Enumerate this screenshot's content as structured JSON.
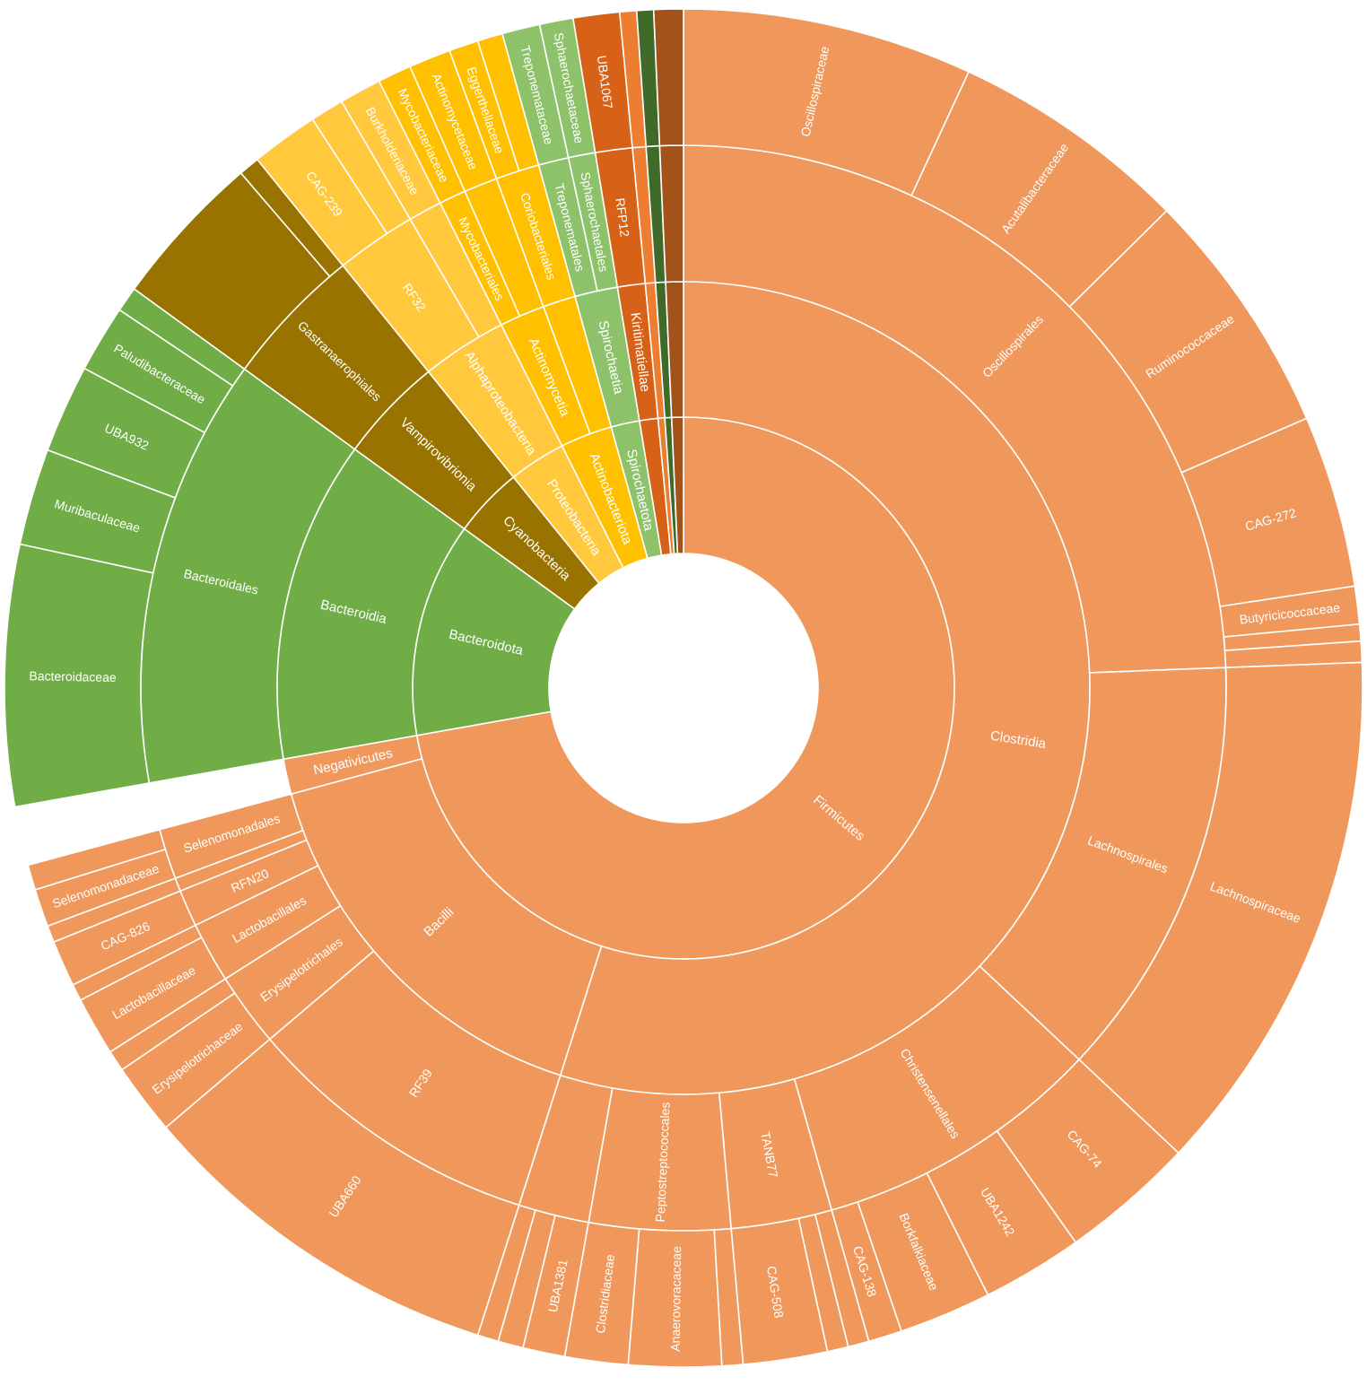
{
  "chart_data": {
    "type": "sunburst",
    "title": "",
    "legend": "none",
    "colors": {
      "Firmicutes": "#f0985b",
      "Bacteroidota": "#70ad47",
      "Cyanobacteria": "#997300",
      "Proteobacteria": "#ffc83d",
      "Actinobacteriota": "#ffc000",
      "Spirochaetota": "#8dc26b",
      "Verrucomicrobiota": "#d66117",
      "Other1": "#ed7d31",
      "Other2": "#3f6a2a",
      "Other3": "#a3531a"
    },
    "levels": [
      "phylum",
      "class",
      "order",
      "family"
    ],
    "segments": [
      {
        "level": 0,
        "label": "Firmicutes",
        "start": 0.0,
        "end": 72.2,
        "color": "Firmicutes"
      },
      {
        "level": 1,
        "label": "Clostridia",
        "start": 0.0,
        "end": 54.9,
        "color": "Firmicutes"
      },
      {
        "level": 2,
        "label": "Oscillospirales",
        "start": 0.0,
        "end": 24.4,
        "color": "Firmicutes"
      },
      {
        "level": 3,
        "label": "Oscillospiraceae",
        "start": 0.0,
        "end": 6.9,
        "color": "Firmicutes"
      },
      {
        "level": 3,
        "label": "Acutalibacteraceae",
        "start": 6.9,
        "end": 12.6,
        "color": "Firmicutes"
      },
      {
        "level": 3,
        "label": "Ruminococcaceae",
        "start": 12.6,
        "end": 18.5,
        "color": "Firmicutes"
      },
      {
        "level": 3,
        "label": "CAG-272",
        "start": 18.5,
        "end": 22.6,
        "color": "Firmicutes"
      },
      {
        "level": 3,
        "label": "Butyricicoccaceae",
        "start": 22.6,
        "end": 23.5,
        "color": "Firmicutes"
      },
      {
        "level": 3,
        "label": "",
        "start": 23.5,
        "end": 23.9,
        "color": "Firmicutes"
      },
      {
        "level": 3,
        "label": "",
        "start": 23.9,
        "end": 24.4,
        "color": "Firmicutes"
      },
      {
        "level": 2,
        "label": "Lachnospirales",
        "start": 24.4,
        "end": 37.0,
        "color": "Firmicutes"
      },
      {
        "level": 3,
        "label": "Lachnospiraceae",
        "start": 24.4,
        "end": 37.0,
        "color": "Firmicutes"
      },
      {
        "level": 2,
        "label": "Christensenellales",
        "start": 37.0,
        "end": 45.6,
        "color": "Firmicutes"
      },
      {
        "level": 3,
        "label": "CAG-74",
        "start": 37.0,
        "end": 40.2,
        "color": "Firmicutes"
      },
      {
        "level": 3,
        "label": "UBA1242",
        "start": 40.2,
        "end": 42.6,
        "color": "Firmicutes"
      },
      {
        "level": 3,
        "label": "Borkfalkiaceae",
        "start": 42.6,
        "end": 44.8,
        "color": "Firmicutes"
      },
      {
        "level": 3,
        "label": "CAG-138",
        "start": 44.8,
        "end": 45.6,
        "color": "Firmicutes"
      },
      {
        "level": 2,
        "label": "TANB77",
        "start": 45.6,
        "end": 48.6,
        "color": "Firmicutes"
      },
      {
        "level": 3,
        "label": "",
        "start": 45.6,
        "end": 46.1,
        "color": "Firmicutes"
      },
      {
        "level": 3,
        "label": "",
        "start": 46.1,
        "end": 46.6,
        "color": "Firmicutes"
      },
      {
        "level": 3,
        "label": "CAG-508",
        "start": 46.6,
        "end": 48.6,
        "color": "Firmicutes"
      },
      {
        "level": 2,
        "label": "Peptostreptococcales",
        "start": 48.6,
        "end": 52.8,
        "color": "Firmicutes"
      },
      {
        "level": 3,
        "label": "",
        "start": 48.6,
        "end": 49.1,
        "color": "Firmicutes"
      },
      {
        "level": 3,
        "label": "Anaerovoracaceae",
        "start": 49.1,
        "end": 51.3,
        "color": "Firmicutes"
      },
      {
        "level": 3,
        "label": "Clostridiaceae",
        "start": 51.3,
        "end": 52.8,
        "color": "Firmicutes"
      },
      {
        "level": 2,
        "label": "",
        "start": 52.8,
        "end": 54.9,
        "color": "Firmicutes"
      },
      {
        "level": 3,
        "label": "UBA1381",
        "start": 52.8,
        "end": 53.8,
        "color": "Firmicutes"
      },
      {
        "level": 3,
        "label": "",
        "start": 53.8,
        "end": 54.4,
        "color": "Firmicutes"
      },
      {
        "level": 3,
        "label": "",
        "start": 54.4,
        "end": 54.9,
        "color": "Firmicutes"
      },
      {
        "level": 1,
        "label": "Bacilli",
        "start": 54.9,
        "end": 70.8,
        "color": "Firmicutes"
      },
      {
        "level": 2,
        "label": "RF39",
        "start": 54.9,
        "end": 63.8,
        "color": "Firmicutes"
      },
      {
        "level": 3,
        "label": "UBA660",
        "start": 54.9,
        "end": 63.8,
        "color": "Firmicutes"
      },
      {
        "level": 2,
        "label": "Erysipelotrichales",
        "start": 63.8,
        "end": 66.0,
        "color": "Firmicutes"
      },
      {
        "level": 3,
        "label": "Erysipelotrichaceae",
        "start": 63.8,
        "end": 65.5,
        "color": "Firmicutes"
      },
      {
        "level": 3,
        "label": "",
        "start": 65.5,
        "end": 66.0,
        "color": "Firmicutes"
      },
      {
        "level": 2,
        "label": "Lactobacillales",
        "start": 66.0,
        "end": 67.8,
        "color": "Firmicutes"
      },
      {
        "level": 3,
        "label": "Lactobacillaceae",
        "start": 66.0,
        "end": 67.4,
        "color": "Firmicutes"
      },
      {
        "level": 3,
        "label": "",
        "start": 67.4,
        "end": 67.8,
        "color": "Firmicutes"
      },
      {
        "level": 2,
        "label": "RFN20",
        "start": 67.8,
        "end": 68.9,
        "color": "Firmicutes"
      },
      {
        "level": 3,
        "label": "CAG-826",
        "start": 67.8,
        "end": 68.9,
        "color": "Firmicutes"
      },
      {
        "level": 2,
        "label": "",
        "start": 68.9,
        "end": 69.3,
        "color": "Firmicutes"
      },
      {
        "level": 3,
        "label": "",
        "start": 68.9,
        "end": 69.3,
        "color": "Firmicutes"
      },
      {
        "level": 2,
        "label": "Selenomonadales",
        "start": 69.3,
        "end": 70.8,
        "color": "Firmicutes"
      },
      {
        "level": 3,
        "label": "Selenomonadaceae",
        "start": 69.3,
        "end": 70.2,
        "color": "Firmicutes"
      },
      {
        "level": 3,
        "label": "",
        "start": 70.2,
        "end": 70.8,
        "color": "Firmicutes"
      },
      {
        "level": 1,
        "label": "Negativicutes",
        "start": 70.8,
        "end": 72.2,
        "color": "Firmicutes"
      },
      {
        "level": 0,
        "label": "Bacteroidota",
        "start": 72.2,
        "end": 85.0,
        "color": "Bacteroidota"
      },
      {
        "level": 1,
        "label": "Bacteroidia",
        "start": 72.2,
        "end": 85.0,
        "color": "Bacteroidota"
      },
      {
        "level": 2,
        "label": "Bacteroidales",
        "start": 72.2,
        "end": 85.0,
        "color": "Bacteroidota"
      },
      {
        "level": 3,
        "label": "Bacteroidaceae",
        "start": 72.2,
        "end": 78.4,
        "color": "Bacteroidota"
      },
      {
        "level": 3,
        "label": "Muribaculaceae",
        "start": 78.4,
        "end": 80.7,
        "color": "Bacteroidota"
      },
      {
        "level": 3,
        "label": "UBA932",
        "start": 80.7,
        "end": 82.8,
        "color": "Bacteroidota"
      },
      {
        "level": 3,
        "label": "Paludibacteraceae",
        "start": 82.8,
        "end": 84.4,
        "color": "Bacteroidota"
      },
      {
        "level": 3,
        "label": "",
        "start": 84.4,
        "end": 85.0,
        "color": "Bacteroidota"
      },
      {
        "level": 0,
        "label": "Cyanobacteria",
        "start": 85.0,
        "end": 89.2,
        "color": "Cyanobacteria"
      },
      {
        "level": 1,
        "label": "Vampirovibrionia",
        "start": 85.0,
        "end": 89.2,
        "color": "Cyanobacteria"
      },
      {
        "level": 2,
        "label": "Gastranaerophiales",
        "start": 85.0,
        "end": 89.2,
        "color": "Cyanobacteria"
      },
      {
        "level": 3,
        "label": "",
        "start": 85.0,
        "end": 88.7,
        "color": "Cyanobacteria"
      },
      {
        "level": 3,
        "label": "",
        "start": 88.7,
        "end": 89.2,
        "color": "Cyanobacteria"
      },
      {
        "level": 0,
        "label": "Proteobacteria",
        "start": 89.2,
        "end": 92.6,
        "color": "Proteobacteria"
      },
      {
        "level": 1,
        "label": "Alphaproteobacteria",
        "start": 89.2,
        "end": 92.6,
        "color": "Proteobacteria"
      },
      {
        "level": 2,
        "label": "RF32",
        "start": 89.2,
        "end": 91.6,
        "color": "Proteobacteria"
      },
      {
        "level": 3,
        "label": "CAG-239",
        "start": 89.2,
        "end": 90.8,
        "color": "Proteobacteria"
      },
      {
        "level": 3,
        "label": "",
        "start": 90.8,
        "end": 91.6,
        "color": "Proteobacteria"
      },
      {
        "level": 2,
        "label": "",
        "start": 91.6,
        "end": 92.6,
        "color": "Proteobacteria"
      },
      {
        "level": 3,
        "label": "Burkholderiaceae",
        "start": 91.6,
        "end": 92.6,
        "color": "Proteobacteria"
      },
      {
        "level": 0,
        "label": "Actinobacteriota",
        "start": 92.6,
        "end": 95.7,
        "color": "Actinobacteriota"
      },
      {
        "level": 1,
        "label": "Actinomycetia",
        "start": 92.6,
        "end": 94.4,
        "color": "Actinobacteriota"
      },
      {
        "level": 2,
        "label": "Mycobacteriales",
        "start": 92.6,
        "end": 93.4,
        "color": "Actinobacteriota"
      },
      {
        "level": 3,
        "label": "Mycobacteriaceae",
        "start": 92.6,
        "end": 93.4,
        "color": "Actinobacteriota"
      },
      {
        "level": 2,
        "label": "",
        "start": 93.4,
        "end": 94.4,
        "color": "Actinobacteriota"
      },
      {
        "level": 3,
        "label": "Actinomycetaceae",
        "start": 93.4,
        "end": 94.4,
        "color": "Actinobacteriota"
      },
      {
        "level": 1,
        "label": "",
        "start": 94.4,
        "end": 95.7,
        "color": "Actinobacteriota"
      },
      {
        "level": 2,
        "label": "Coriobacteriales",
        "start": 94.4,
        "end": 95.7,
        "color": "Actinobacteriota"
      },
      {
        "level": 3,
        "label": "Eggerthellaceae",
        "start": 94.4,
        "end": 95.1,
        "color": "Actinobacteriota"
      },
      {
        "level": 3,
        "label": "",
        "start": 95.1,
        "end": 95.7,
        "color": "Actinobacteriota"
      },
      {
        "level": 0,
        "label": "Spirochaetota",
        "start": 95.7,
        "end": 97.4,
        "color": "Spirochaetota"
      },
      {
        "level": 1,
        "label": "Spirochaetia",
        "start": 95.7,
        "end": 97.4,
        "color": "Spirochaetota"
      },
      {
        "level": 2,
        "label": "Treponematales",
        "start": 95.7,
        "end": 96.6,
        "color": "Spirochaetota"
      },
      {
        "level": 3,
        "label": "Treponemataceae",
        "start": 95.7,
        "end": 96.6,
        "color": "Spirochaetota"
      },
      {
        "level": 2,
        "label": "Sphaerochaetales",
        "start": 96.6,
        "end": 97.4,
        "color": "Spirochaetota"
      },
      {
        "level": 3,
        "label": "Sphaerochaetaceae",
        "start": 96.6,
        "end": 97.4,
        "color": "Spirochaetota"
      },
      {
        "level": 0,
        "label": "",
        "start": 97.4,
        "end": 98.5,
        "color": "Verrucomicrobiota"
      },
      {
        "level": 1,
        "label": "Kiritimatiellae",
        "start": 97.4,
        "end": 98.5,
        "color": "Verrucomicrobiota"
      },
      {
        "level": 2,
        "label": "RFP12",
        "start": 97.4,
        "end": 98.5,
        "color": "Verrucomicrobiota"
      },
      {
        "level": 3,
        "label": "UBA1067",
        "start": 97.4,
        "end": 98.5,
        "color": "Verrucomicrobiota"
      },
      {
        "level": 0,
        "label": "",
        "start": 98.5,
        "end": 98.9,
        "color": "Other1"
      },
      {
        "level": 1,
        "label": "",
        "start": 98.5,
        "end": 98.9,
        "color": "Other1"
      },
      {
        "level": 2,
        "label": "",
        "start": 98.5,
        "end": 98.9,
        "color": "Other1"
      },
      {
        "level": 3,
        "label": "",
        "start": 98.5,
        "end": 98.9,
        "color": "Other1"
      },
      {
        "level": 0,
        "label": "",
        "start": 98.9,
        "end": 99.3,
        "color": "Other2"
      },
      {
        "level": 1,
        "label": "",
        "start": 98.9,
        "end": 99.3,
        "color": "Other2"
      },
      {
        "level": 2,
        "label": "",
        "start": 98.9,
        "end": 99.3,
        "color": "Other2"
      },
      {
        "level": 3,
        "label": "",
        "start": 98.9,
        "end": 99.3,
        "color": "Other2"
      },
      {
        "level": 0,
        "label": "",
        "start": 99.3,
        "end": 100.0,
        "color": "Other3"
      },
      {
        "level": 1,
        "label": "",
        "start": 99.3,
        "end": 100.0,
        "color": "Other3"
      },
      {
        "level": 2,
        "label": "",
        "start": 99.3,
        "end": 100.0,
        "color": "Other3"
      },
      {
        "level": 3,
        "label": "",
        "start": 99.3,
        "end": 100.0,
        "color": "Other3"
      }
    ]
  }
}
